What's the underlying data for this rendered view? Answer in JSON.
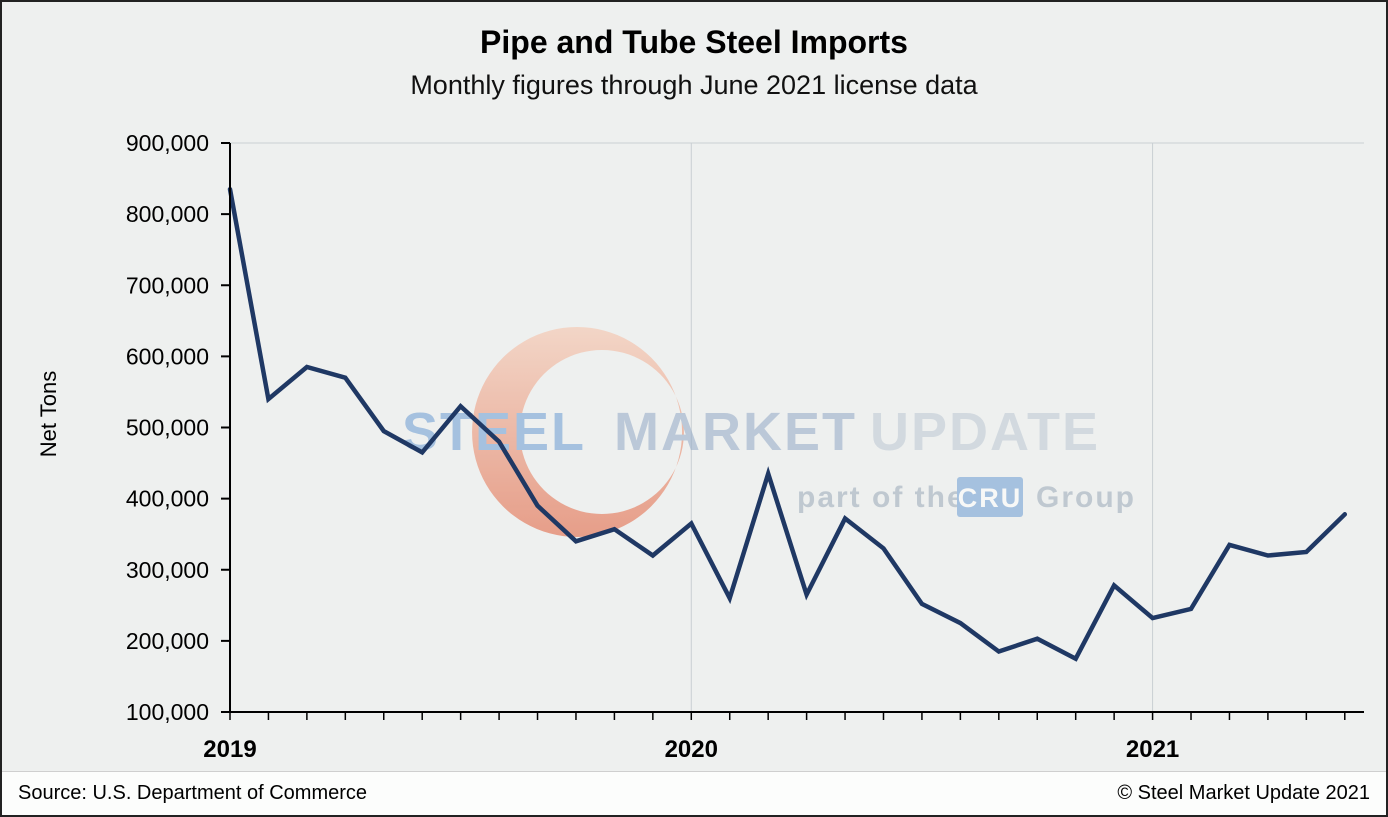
{
  "chart_data": {
    "type": "line",
    "title": "Pipe and Tube Steel Imports",
    "subtitle": "Monthly figures through June 2021 license data",
    "ylabel": "Net Tons",
    "xlabel": "",
    "ylim": [
      100000,
      900000
    ],
    "ytick_step": 100000,
    "x": [
      "2019-01",
      "2019-02",
      "2019-03",
      "2019-04",
      "2019-05",
      "2019-06",
      "2019-07",
      "2019-08",
      "2019-09",
      "2019-10",
      "2019-11",
      "2019-12",
      "2020-01",
      "2020-02",
      "2020-03",
      "2020-04",
      "2020-05",
      "2020-06",
      "2020-07",
      "2020-08",
      "2020-09",
      "2020-10",
      "2020-11",
      "2020-12",
      "2021-01",
      "2021-02",
      "2021-03",
      "2021-04",
      "2021-05",
      "2021-06"
    ],
    "values": [
      835000,
      540000,
      585000,
      570000,
      495000,
      465000,
      530000,
      480000,
      390000,
      340000,
      357000,
      320000,
      365000,
      260000,
      435000,
      265000,
      372000,
      330000,
      252000,
      225000,
      185000,
      203000,
      175000,
      278000,
      232000,
      245000,
      335000,
      320000,
      325000,
      378000
    ],
    "x_year_ticks": [
      {
        "label": "2019",
        "index": 0
      },
      {
        "label": "2020",
        "index": 12
      },
      {
        "label": "2021",
        "index": 24
      }
    ],
    "line_color": "#1f3864",
    "grid_color": "#c9cfd3",
    "axis_color": "#000000",
    "grid": "horizontal-top-and-vertical-at-years",
    "legend": "none"
  },
  "watermark": {
    "word1": "STEEL",
    "word2": "MARKET",
    "word3": "UPDATE",
    "tagline": "part of the",
    "badge": "CRU",
    "tagline2": "Group",
    "accent_blue": "#6b9bd2",
    "word2_color": "#93a9c6",
    "word3_color": "#bcc7d3",
    "tagline_color": "#9aa9b8",
    "crescent_red": "#e05a35",
    "crescent_light": "#f6c0a6"
  },
  "footer": {
    "source": "Source: U.S. Department of Commerce",
    "copyright": "© Steel Market Update 2021"
  }
}
